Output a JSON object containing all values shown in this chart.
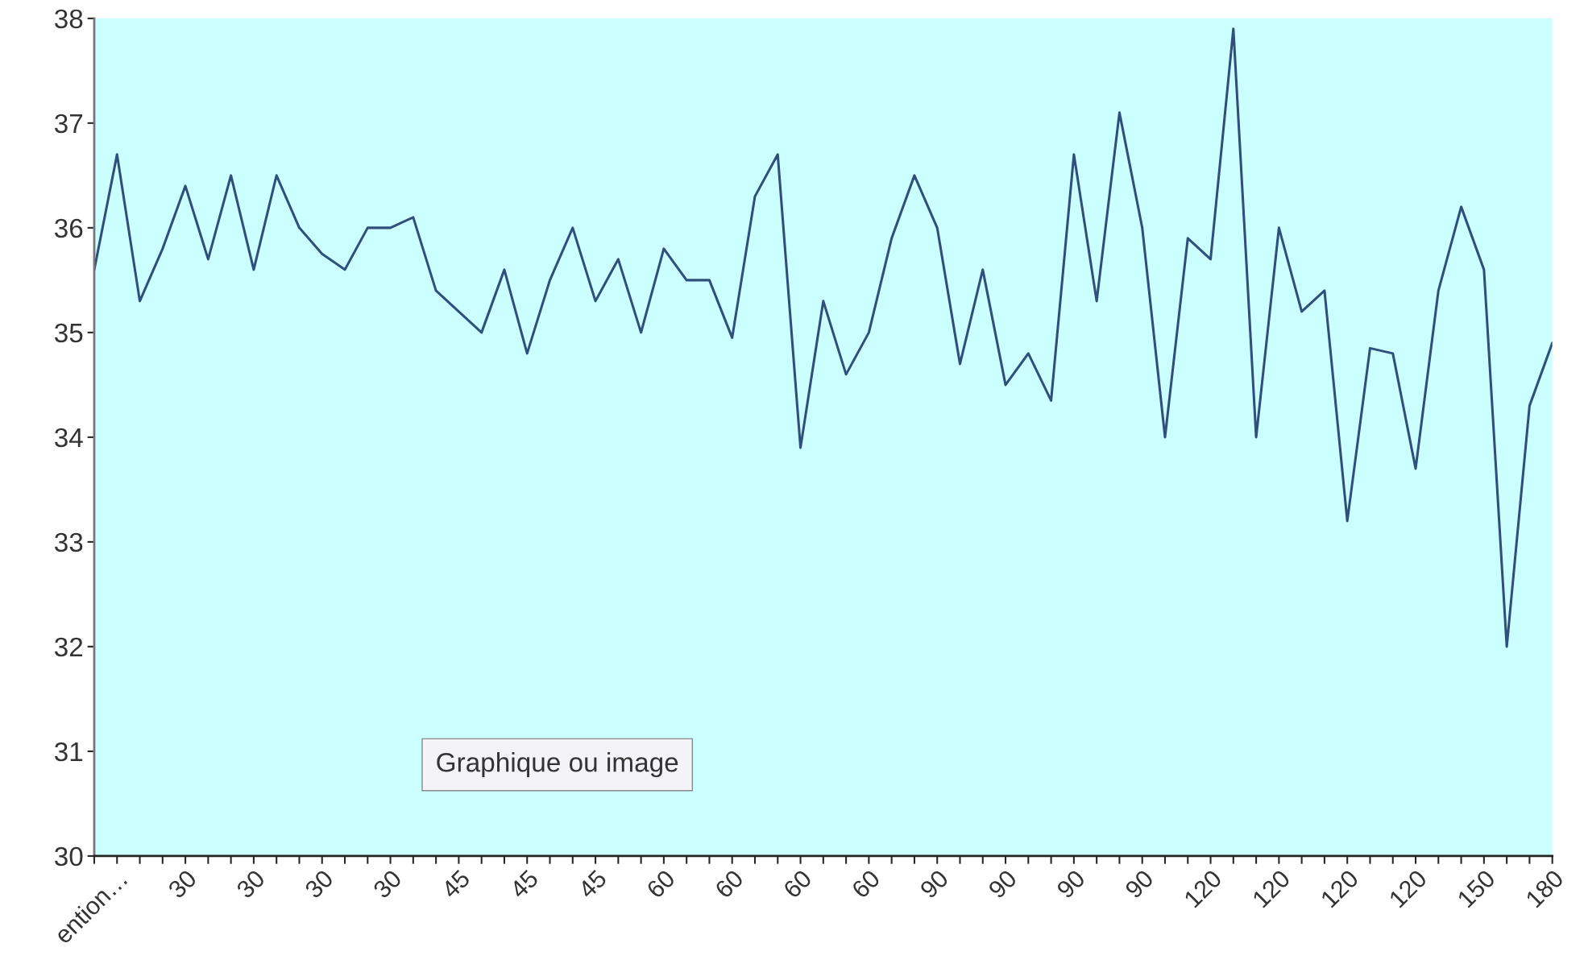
{
  "chart_data": {
    "type": "line",
    "categories": [
      null,
      "ention…",
      null,
      null,
      "30",
      null,
      null,
      "30",
      null,
      null,
      "30",
      null,
      null,
      "30",
      null,
      null,
      "45",
      null,
      null,
      "45",
      null,
      null,
      "45",
      null,
      null,
      "60",
      null,
      null,
      "60",
      null,
      null,
      "60",
      null,
      null,
      "60",
      null,
      null,
      "90",
      null,
      null,
      "90",
      null,
      null,
      "90",
      null,
      null,
      "90",
      null,
      null,
      "120",
      null,
      null,
      "120",
      null,
      null,
      "120",
      null,
      null,
      "120",
      null,
      null,
      "150",
      null,
      null,
      "180"
    ],
    "series": [
      {
        "color": "#2f4f7c",
        "values": [
          35.6,
          36.7,
          35.3,
          35.8,
          36.4,
          35.7,
          36.5,
          35.6,
          36.5,
          36.0,
          35.75,
          35.6,
          36.0,
          36.0,
          36.1,
          35.4,
          35.2,
          35.0,
          35.6,
          34.8,
          35.5,
          36.0,
          35.3,
          35.7,
          35.0,
          35.8,
          35.5,
          35.5,
          34.95,
          36.3,
          36.7,
          33.9,
          35.3,
          34.6,
          35.0,
          35.9,
          36.5,
          36.0,
          34.7,
          35.6,
          34.5,
          34.8,
          34.35,
          36.7,
          35.3,
          37.1,
          36.0,
          34.0,
          35.9,
          35.7,
          37.9,
          34.0,
          36.0,
          35.2,
          35.4,
          33.2,
          34.85,
          34.8,
          33.7,
          35.4,
          36.2,
          35.6,
          32.0,
          34.3,
          34.9
        ]
      }
    ],
    "ylim": [
      30,
      38
    ],
    "yticks": [
      30,
      31,
      32,
      33,
      34,
      35,
      36,
      37,
      38
    ],
    "grid": false,
    "legend": false,
    "annotations": [
      "Graphique ou image"
    ]
  }
}
